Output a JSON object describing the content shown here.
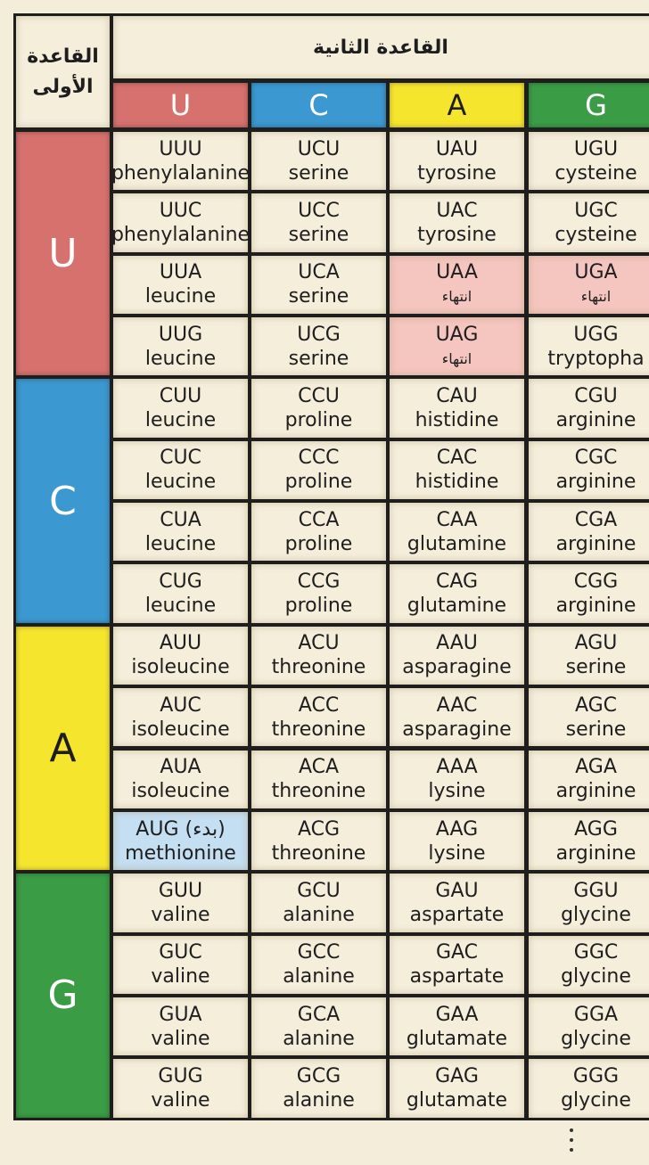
{
  "header": {
    "first_base_title": "القاعدة الأولى",
    "second_base_title": "القاعدة الثانية"
  },
  "second_bases": [
    {
      "label": "U",
      "color": "#d6716e"
    },
    {
      "label": "C",
      "color": "#3c98d0"
    },
    {
      "label": "A",
      "color": "#f6e52d"
    },
    {
      "label": "G",
      "color": "#3b9c46"
    }
  ],
  "first_bases": [
    {
      "label": "U",
      "color": "#d6716e"
    },
    {
      "label": "C",
      "color": "#3c98d0"
    },
    {
      "label": "A",
      "color": "#f6e52d"
    },
    {
      "label": "G",
      "color": "#3b9c46"
    }
  ],
  "rows": [
    [
      {
        "codon": "UUU",
        "amino_acid": "phenylalanine"
      },
      {
        "codon": "UCU",
        "amino_acid": "serine"
      },
      {
        "codon": "UAU",
        "amino_acid": "tyrosine"
      },
      {
        "codon": "UGU",
        "amino_acid": "cysteine"
      }
    ],
    [
      {
        "codon": "UUC",
        "amino_acid": "phenylalanine"
      },
      {
        "codon": "UCC",
        "amino_acid": "serine"
      },
      {
        "codon": "UAC",
        "amino_acid": "tyrosine"
      },
      {
        "codon": "UGC",
        "amino_acid": "cysteine"
      }
    ],
    [
      {
        "codon": "UUA",
        "amino_acid": "leucine"
      },
      {
        "codon": "UCA",
        "amino_acid": "serine"
      },
      {
        "codon": "UAA",
        "amino_acid": "انتهاء",
        "color": "#f5c5bf"
      },
      {
        "codon": "UGA",
        "amino_acid": "انتهاء",
        "color": "#f5c5bf"
      }
    ],
    [
      {
        "codon": "UUG",
        "amino_acid": "leucine"
      },
      {
        "codon": "UCG",
        "amino_acid": "serine"
      },
      {
        "codon": "UAG",
        "amino_acid": "انتهاء",
        "color": "#f5c5bf"
      },
      {
        "codon": "UGG",
        "amino_acid": "tryptopha"
      }
    ],
    [
      {
        "codon": "CUU",
        "amino_acid": "leucine"
      },
      {
        "codon": "CCU",
        "amino_acid": "proline"
      },
      {
        "codon": "CAU",
        "amino_acid": "histidine"
      },
      {
        "codon": "CGU",
        "amino_acid": "arginine"
      }
    ],
    [
      {
        "codon": "CUC",
        "amino_acid": "leucine"
      },
      {
        "codon": "CCC",
        "amino_acid": "proline"
      },
      {
        "codon": "CAC",
        "amino_acid": "histidine"
      },
      {
        "codon": "CGC",
        "amino_acid": "arginine"
      }
    ],
    [
      {
        "codon": "CUA",
        "amino_acid": "leucine"
      },
      {
        "codon": "CCA",
        "amino_acid": "proline"
      },
      {
        "codon": "CAA",
        "amino_acid": "glutamine"
      },
      {
        "codon": "CGA",
        "amino_acid": "arginine"
      }
    ],
    [
      {
        "codon": "CUG",
        "amino_acid": "leucine"
      },
      {
        "codon": "CCG",
        "amino_acid": "proline"
      },
      {
        "codon": "CAG",
        "amino_acid": "glutamine"
      },
      {
        "codon": "CGG",
        "amino_acid": "arginine"
      }
    ],
    [
      {
        "codon": "AUU",
        "amino_acid": "isoleucine"
      },
      {
        "codon": "ACU",
        "amino_acid": "threonine"
      },
      {
        "codon": "AAU",
        "amino_acid": "asparagine"
      },
      {
        "codon": "AGU",
        "amino_acid": "serine"
      }
    ],
    [
      {
        "codon": "AUC",
        "amino_acid": "isoleucine"
      },
      {
        "codon": "ACC",
        "amino_acid": "threonine"
      },
      {
        "codon": "AAC",
        "amino_acid": "asparagine"
      },
      {
        "codon": "AGC",
        "amino_acid": "serine"
      }
    ],
    [
      {
        "codon": "AUA",
        "amino_acid": "isoleucine"
      },
      {
        "codon": "ACA",
        "amino_acid": "threonine"
      },
      {
        "codon": "AAA",
        "amino_acid": "lysine"
      },
      {
        "codon": "AGA",
        "amino_acid": "arginine"
      }
    ],
    [
      {
        "codon": "AUG (بدء)",
        "amino_acid": "methionine",
        "color": "#c4def2"
      },
      {
        "codon": "ACG",
        "amino_acid": "threonine"
      },
      {
        "codon": "AAG",
        "amino_acid": "lysine"
      },
      {
        "codon": "AGG",
        "amino_acid": "arginine"
      }
    ],
    [
      {
        "codon": "GUU",
        "amino_acid": "valine"
      },
      {
        "codon": "GCU",
        "amino_acid": "alanine"
      },
      {
        "codon": "GAU",
        "amino_acid": "aspartate"
      },
      {
        "codon": "GGU",
        "amino_acid": "glycine"
      }
    ],
    [
      {
        "codon": "GUC",
        "amino_acid": "valine"
      },
      {
        "codon": "GCC",
        "amino_acid": "alanine"
      },
      {
        "codon": "GAC",
        "amino_acid": "aspartate"
      },
      {
        "codon": "GGC",
        "amino_acid": "glycine"
      }
    ],
    [
      {
        "codon": "GUA",
        "amino_acid": "valine"
      },
      {
        "codon": "GCA",
        "amino_acid": "alanine"
      },
      {
        "codon": "GAA",
        "amino_acid": "glutamate"
      },
      {
        "codon": "GGA",
        "amino_acid": "glycine"
      }
    ],
    [
      {
        "codon": "GUG",
        "amino_acid": "valine"
      },
      {
        "codon": "GCG",
        "amino_acid": "alanine"
      },
      {
        "codon": "GAG",
        "amino_acid": "glutamate"
      },
      {
        "codon": "GGG",
        "amino_acid": "glycine"
      }
    ]
  ]
}
